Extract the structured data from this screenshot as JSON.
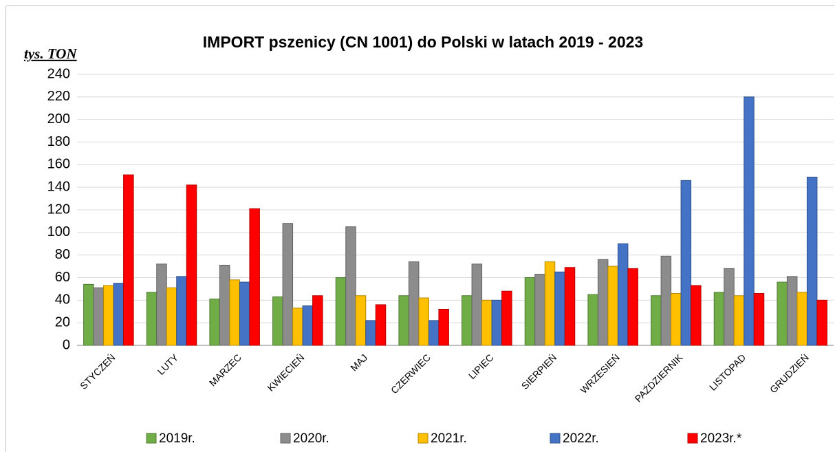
{
  "chart_data": {
    "type": "bar",
    "title": "IMPORT pszenicy (CN 1001) do Polski w latach 2019 - 2023",
    "y_axis_label": "tys. TON",
    "categories": [
      "STYCZEŃ",
      "LUTY",
      "MARZEC",
      "KWIECIEŃ",
      "MAJ",
      "CZERWIEC",
      "LIPIEC",
      "SIERPIEŃ",
      "WRZESIEŃ",
      "PAŹDZIERNIK",
      "LISTOPAD",
      "GRUDZIEŃ"
    ],
    "series": [
      {
        "name": "2019r.",
        "color": "#70ad47",
        "values": [
          54,
          47,
          41,
          43,
          60,
          44,
          44,
          60,
          45,
          44,
          47,
          56
        ]
      },
      {
        "name": "2020r.",
        "color": "#8c8c8c",
        "values": [
          51,
          72,
          71,
          108,
          105,
          74,
          72,
          63,
          76,
          79,
          68,
          61
        ]
      },
      {
        "name": "2021r.",
        "color": "#ffc000",
        "values": [
          53,
          51,
          58,
          33,
          44,
          42,
          40,
          74,
          70,
          46,
          44,
          47
        ]
      },
      {
        "name": "2022r.",
        "color": "#4472c4",
        "values": [
          55,
          61,
          56,
          35,
          22,
          22,
          40,
          65,
          90,
          146,
          220,
          149
        ]
      },
      {
        "name": "2023r.*",
        "color": "#ff0000",
        "values": [
          151,
          142,
          121,
          44,
          36,
          32,
          48,
          69,
          68,
          53,
          46,
          40
        ]
      }
    ],
    "ylim": [
      0,
      240
    ],
    "yticks": [
      0,
      20,
      40,
      60,
      80,
      100,
      120,
      140,
      160,
      180,
      200,
      220,
      240
    ],
    "grid": true,
    "legend": "bottom"
  }
}
